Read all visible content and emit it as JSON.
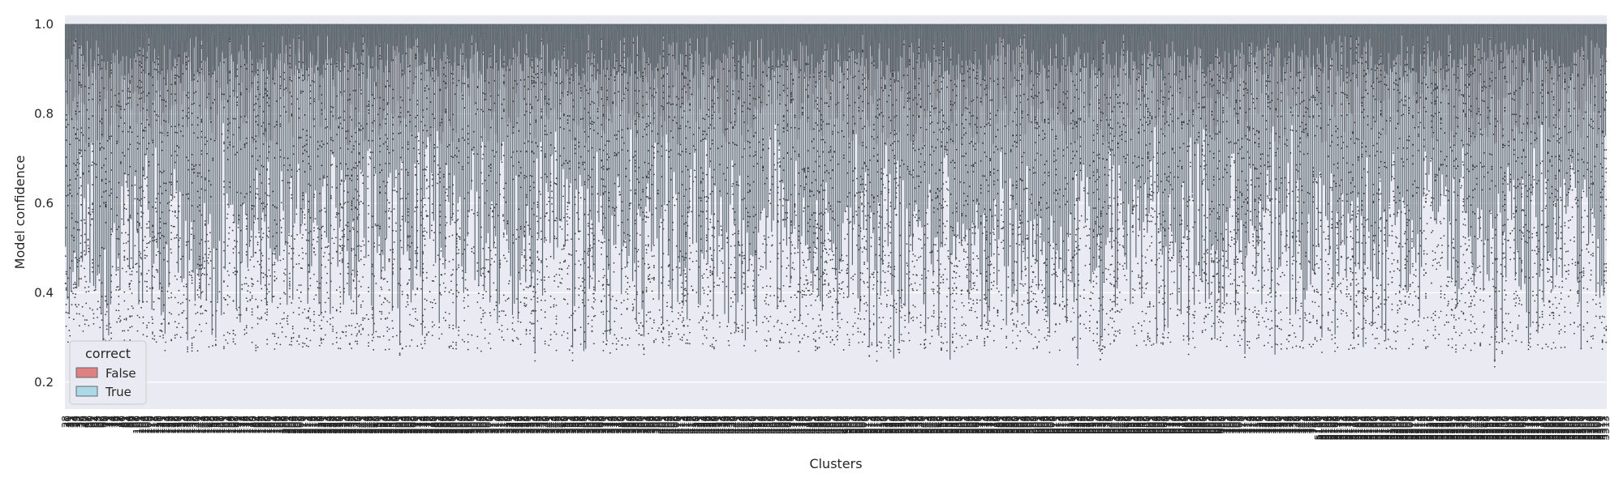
{
  "chart_data": {
    "type": "boxplot",
    "xlabel": "Clusters",
    "ylabel": "Model confidence",
    "ylim": [
      0.14,
      1.02
    ],
    "yticks": [
      0.2,
      0.4,
      0.6,
      0.8,
      1.0
    ],
    "ytick_labels": [
      "0.2",
      "0.4",
      "0.6",
      "0.8",
      "1.0"
    ],
    "grid": true,
    "legend": {
      "title": "correct",
      "placement": "bottom-left",
      "entries": [
        {
          "name": "False",
          "color": "#e08080"
        },
        {
          "name": "True",
          "color": "#add8e6"
        }
      ]
    },
    "colors": {
      "false": "#e08080",
      "true": "#add8e6",
      "background": "#eaeaf2",
      "whisker": "#5f6b72",
      "grid": "#ffffff"
    },
    "categories": [
      "28",
      "30",
      "31",
      "32",
      "33",
      "34",
      "35",
      "37",
      "38",
      "39",
      "40",
      "47",
      "56",
      "60",
      "61",
      "62",
      "64",
      "65",
      "67",
      "68",
      "69",
      "70",
      "71",
      "72",
      "73",
      "74",
      "75",
      "76",
      "77",
      "78",
      "80",
      "81",
      "82",
      "84",
      "86",
      "96",
      "97",
      "98",
      "100",
      "101",
      "103",
      "104",
      "105",
      "106",
      "109",
      "110",
      "112",
      "113",
      "116",
      "118",
      "120",
      "121",
      "122",
      "123",
      "124",
      "125",
      "126",
      "127",
      "128",
      "129",
      "130",
      "131",
      "132",
      "133",
      "134",
      "135",
      "136",
      "137",
      "138",
      "139",
      "140",
      "141",
      "143",
      "144",
      "145",
      "146",
      "147",
      "148",
      "150",
      "153",
      "156",
      "157",
      "158",
      "160",
      "161",
      "162",
      "163",
      "164",
      "166",
      "167",
      "168",
      "169",
      "171",
      "172",
      "173",
      "175",
      "176",
      "177",
      "178",
      "179",
      "180",
      "182",
      "184",
      "185",
      "186",
      "187",
      "188",
      "189",
      "190",
      "191",
      "192",
      "194",
      "195",
      "196",
      "197",
      "198",
      "199",
      "200",
      "201",
      "203",
      "204",
      "205",
      "206",
      "207",
      "208",
      "209",
      "210",
      "211",
      "212",
      "213",
      "214",
      "215",
      "216",
      "217",
      "218",
      "219",
      "220",
      "221",
      "222",
      "223",
      "224",
      "225",
      "226",
      "227",
      "228",
      "229",
      "230",
      "231",
      "232",
      "233",
      "234",
      "235",
      "236",
      "237",
      "238",
      "239",
      "240",
      "241",
      "242",
      "243",
      "244",
      "245",
      "246",
      "247",
      "248",
      "249",
      "250",
      "251",
      "252",
      "253",
      "254",
      "255",
      "256",
      "257",
      "258",
      "259",
      "260",
      "261",
      "262",
      "263",
      "264",
      "265",
      "266",
      "267",
      "268",
      "269",
      "270",
      "271",
      "272",
      "273",
      "274",
      "275",
      "276",
      "277",
      "278",
      "279",
      "280",
      "281",
      "282",
      "283",
      "284",
      "285",
      "286",
      "287",
      "288",
      "289",
      "290",
      "291",
      "292",
      "293",
      "294",
      "295",
      "296",
      "297",
      "298",
      "299",
      "300",
      "301",
      "302",
      "303",
      "304",
      "305",
      "306",
      "307",
      "308",
      "309",
      "310",
      "311",
      "312",
      "313",
      "314",
      "315",
      "316",
      "317",
      "318",
      "319",
      "320",
      "321",
      "322",
      "323",
      "324",
      "325",
      "326",
      "327",
      "328",
      "329",
      "330",
      "331",
      "332",
      "333",
      "334",
      "335",
      "336",
      "337",
      "338",
      "339",
      "340",
      "341",
      "342",
      "343",
      "344",
      "345",
      "346",
      "347",
      "348",
      "349",
      "350",
      "351",
      "352",
      "353",
      "354",
      "355",
      "356",
      "357",
      "358",
      "359",
      "360",
      "361",
      "362",
      "363",
      "364",
      "365",
      "366",
      "367",
      "368",
      "369",
      "370",
      "371",
      "372",
      "373",
      "374",
      "375",
      "376",
      "377",
      "378",
      "379",
      "380",
      "381",
      "382",
      "383",
      "384",
      "385",
      "386",
      "387",
      "388",
      "389",
      "390",
      "391",
      "392",
      "393",
      "394",
      "395",
      "396",
      "397",
      "398",
      "399",
      "400",
      "401",
      "402",
      "403",
      "404",
      "405",
      "406",
      "407",
      "408",
      "409",
      "410",
      "411",
      "412",
      "413",
      "414",
      "415",
      "416",
      "417",
      "418",
      "419",
      "420",
      "421",
      "422",
      "423",
      "424",
      "425",
      "426",
      "427",
      "428",
      "429",
      "430",
      "431",
      "432",
      "433",
      "434",
      "435",
      "436",
      "437",
      "438",
      "439",
      "440",
      "441",
      "442",
      "443",
      "444",
      "445",
      "446",
      "447",
      "448",
      "449",
      "450",
      "451",
      "452",
      "453",
      "454",
      "455",
      "456",
      "457",
      "458",
      "459",
      "460",
      "461",
      "462",
      "463",
      "464",
      "465",
      "466",
      "467",
      "468",
      "469",
      "470",
      "471",
      "472",
      "473",
      "474",
      "475",
      "476",
      "477",
      "478",
      "479",
      "480",
      "481",
      "482",
      "483",
      "484",
      "485",
      "486",
      "487",
      "488",
      "489",
      "490",
      "491",
      "492",
      "493",
      "494",
      "495",
      "496",
      "497",
      "498",
      "499",
      "500",
      "501",
      "502",
      "503",
      "504",
      "505",
      "506",
      "507",
      "508",
      "509",
      "510",
      "511",
      "512",
      "513",
      "514",
      "515",
      "516",
      "517",
      "518",
      "519",
      "520",
      "521",
      "522",
      "523",
      "524",
      "525",
      "526",
      "527",
      "528",
      "529",
      "530",
      "531",
      "532",
      "533",
      "534",
      "535",
      "536",
      "537",
      "538",
      "539",
      "540",
      "541",
      "542",
      "543",
      "544",
      "545",
      "546",
      "547",
      "548",
      "549",
      "550",
      "551",
      "552",
      "553",
      "554",
      "555",
      "556",
      "557",
      "558",
      "559",
      "560",
      "561",
      "562",
      "563",
      "564",
      "565",
      "566",
      "567",
      "568",
      "569",
      "570",
      "571",
      "572",
      "573",
      "574",
      "575",
      "576",
      "577",
      "578",
      "579",
      "580",
      "581",
      "582",
      "583",
      "584",
      "585",
      "586",
      "587",
      "588",
      "589",
      "590",
      "591",
      "592",
      "593",
      "594",
      "595",
      "596",
      "597",
      "598",
      "599",
      "600",
      "601",
      "602",
      "603",
      "604",
      "605",
      "606",
      "607",
      "608",
      "609",
      "610",
      "611",
      "612",
      "613",
      "614",
      "615",
      "616",
      "617",
      "618",
      "619",
      "620",
      "621",
      "622",
      "623",
      "624",
      "625",
      "626",
      "627",
      "628",
      "629",
      "630",
      "631",
      "632",
      "633",
      "634",
      "635",
      "636",
      "637",
      "638",
      "639",
      "640",
      "641",
      "642",
      "643",
      "644",
      "645",
      "646",
      "647",
      "648",
      "649",
      "650",
      "651",
      "652",
      "653",
      "654",
      "655",
      "656",
      "657",
      "658",
      "659",
      "660",
      "661",
      "662",
      "663",
      "664",
      "665",
      "666",
      "667",
      "668",
      "669",
      "670",
      "671",
      "672",
      "673",
      "674",
      "675",
      "676",
      "677",
      "678",
      "679",
      "680",
      "681",
      "682",
      "683",
      "684",
      "685",
      "686",
      "687",
      "688",
      "689",
      "690",
      "691",
      "692",
      "693",
      "694",
      "695",
      "696",
      "697",
      "698",
      "699",
      "700",
      "701",
      "702",
      "703",
      "704",
      "705",
      "706",
      "707",
      "708",
      "709",
      "710",
      "711",
      "712",
      "713",
      "714",
      "715",
      "716",
      "717",
      "718",
      "719",
      "720",
      "721",
      "722",
      "723",
      "724",
      "725",
      "726",
      "727",
      "728",
      "729",
      "730",
      "731",
      "732",
      "733",
      "734",
      "735",
      "736",
      "737",
      "738",
      "739",
      "740",
      "741",
      "742",
      "743",
      "744",
      "745",
      "746",
      "747",
      "748",
      "749",
      "750",
      "5160",
      "5161",
      "5162",
      "5163",
      "5164",
      "5165",
      "5166",
      "5167",
      "5168",
      "5169",
      "5170",
      "5171",
      "5172",
      "5173",
      "5174",
      "5175",
      "5176",
      "5177",
      "5178",
      "5179",
      "5180",
      "5181",
      "5182",
      "5183",
      "5184",
      "5185",
      "5186",
      "5187",
      "5188",
      "5189",
      "5190",
      "5191",
      "5192",
      "5193",
      "5194",
      "5195",
      "5196",
      "5197",
      "5198",
      "5199",
      "5200",
      "5201",
      "5202",
      "5203",
      "5204",
      "5205",
      "5206",
      "5207",
      "5208",
      "5209",
      "5210",
      "5211",
      "5212",
      "5213",
      "5214",
      "5215",
      "5216",
      "5217",
      "5218",
      "5219",
      "5220",
      "5221",
      "5222",
      "5223",
      "5224",
      "5225",
      "5226",
      "5227",
      "5228",
      "5229",
      "5230",
      "5231",
      "5232",
      "5233",
      "5234",
      "5235",
      "5236",
      "5237",
      "5238",
      "5239",
      "5240",
      "5241",
      "5242",
      "5243",
      "5244",
      "5245",
      "5246",
      "5247",
      "5248",
      "5249",
      "5250",
      "5251",
      "5252",
      "5253",
      "5254",
      "5255",
      "5256",
      "5257",
      "5258",
      "5259",
      "5260",
      "5261",
      "5262",
      "5263",
      "5264",
      "5265",
      "5266",
      "5267",
      "5268",
      "5269",
      "5270",
      "5271",
      "5272",
      "5273",
      "5274",
      "5275",
      "5276",
      "5277",
      "5278",
      "5279",
      "5280",
      "5281",
      "5282",
      "5283",
      "5284",
      "5285",
      "5286",
      "5287",
      "5288",
      "5289",
      "5290",
      "5291",
      "5292",
      "5293",
      "5294",
      "5295",
      "5296",
      "5297",
      "5298",
      "5299",
      "5300",
      "5301",
      "5302",
      "5303",
      "5304",
      "5305",
      "5306",
      "5307",
      "5308",
      "5309",
      "5310",
      "5311",
      "5312",
      "5313"
    ],
    "series": [
      {
        "name": "False",
        "summary": "per-cluster confidence boxes for incorrect predictions; medians mostly 0.93–0.99, lower quartiles ~0.70–0.95, whiskers down to ~0.30–0.60",
        "typical_box": {
          "q1": 0.84,
          "median": 0.96,
          "q3": 1.0,
          "whisker_low": 0.45,
          "whisker_high": 1.0
        }
      },
      {
        "name": "True",
        "summary": "per-cluster confidence boxes for correct predictions; medians ~1.0, boxes tight at 0.97–1.0, whiskers ~0.85–1.0, many outliers down to ~0.2",
        "typical_box": {
          "q1": 0.985,
          "median": 0.998,
          "q3": 1.0,
          "whisker_low": 0.92,
          "whisker_high": 1.0
        }
      }
    ]
  }
}
